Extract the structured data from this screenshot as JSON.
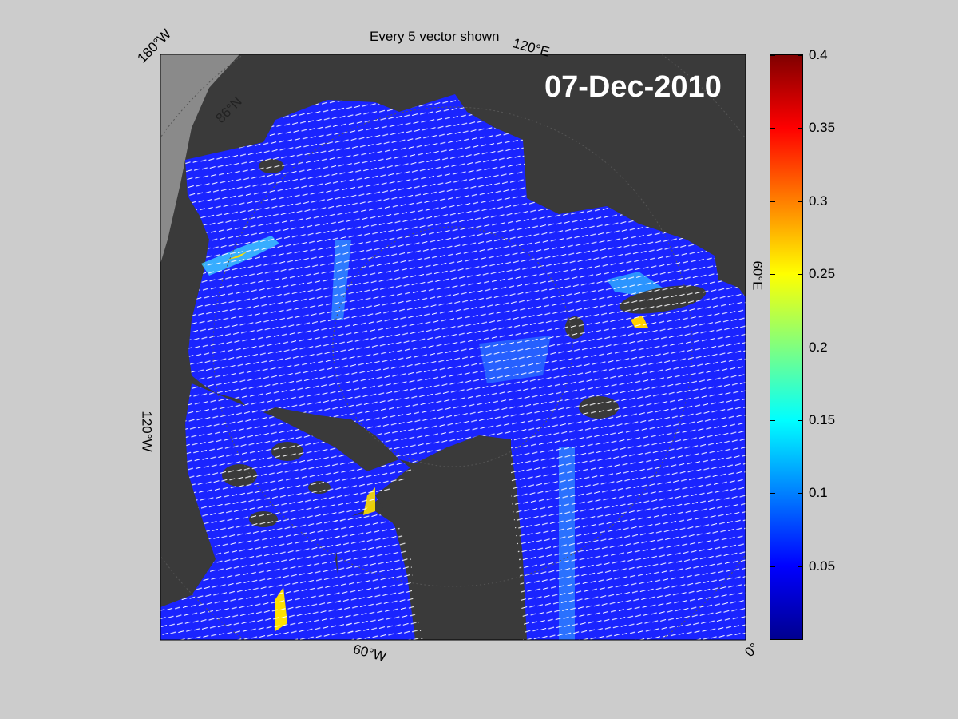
{
  "title": "Every 5 vector shown",
  "date": "07-Dec-2010",
  "map_labels": {
    "lon_180w": "180°W",
    "lon_120e": "120°E",
    "lon_60e": "60°E",
    "lon_120w": "120°W",
    "lon_60w": "60°W",
    "lon_0": "0°",
    "lat_86n": "86°N"
  },
  "colorbar": {
    "colormap": "jet",
    "min": 0,
    "max": 0.4,
    "ticks": [
      "0.05",
      "0.1",
      "0.15",
      "0.2",
      "0.25",
      "0.3",
      "0.35",
      "0.4"
    ]
  },
  "colors": {
    "background": "#cccccc",
    "land": "#3a3a3a",
    "land_outside": "#8a8a8a",
    "ice_low": "#1a24ff",
    "vectors": "#ffffff"
  }
}
